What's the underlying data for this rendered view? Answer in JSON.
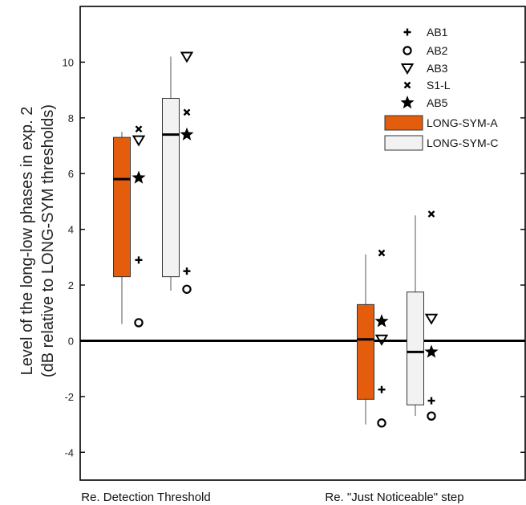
{
  "chart_data": {
    "type": "box",
    "ylabel_lines": [
      "Level of the long-low phases in exp. 2",
      "(dB relative to LONG-SYM thresholds)"
    ],
    "categories": [
      "Re. Detection Threshold",
      "Re. \"Just Noticeable\" step"
    ],
    "ylim": [
      -5,
      12
    ],
    "yticks": [
      -4,
      -2,
      0,
      2,
      4,
      6,
      8,
      10
    ],
    "reference_line": 0,
    "boxes": [
      {
        "series": "LONG-SYM-A",
        "category": 0,
        "whisker_low": 0.6,
        "q1": 2.3,
        "median": 5.8,
        "q3": 7.3,
        "whisker_high": 7.5
      },
      {
        "series": "LONG-SYM-C",
        "category": 0,
        "whisker_low": 1.8,
        "q1": 2.3,
        "median": 7.4,
        "q3": 8.7,
        "whisker_high": 10.2
      },
      {
        "series": "LONG-SYM-A",
        "category": 1,
        "whisker_low": -3.0,
        "q1": -2.1,
        "median": 0.05,
        "q3": 1.3,
        "whisker_high": 3.1
      },
      {
        "series": "LONG-SYM-C",
        "category": 1,
        "whisker_low": -2.7,
        "q1": -2.3,
        "median": -0.4,
        "q3": 1.75,
        "whisker_high": 4.5
      }
    ],
    "subjects": [
      {
        "name": "AB1",
        "marker": "plus",
        "values": [
          2.9,
          2.5,
          -1.75,
          -2.15
        ]
      },
      {
        "name": "AB2",
        "marker": "circle",
        "values": [
          0.65,
          1.85,
          -2.95,
          -2.7
        ]
      },
      {
        "name": "AB3",
        "marker": "triangle-down",
        "values": [
          7.2,
          10.2,
          0.05,
          0.8
        ]
      },
      {
        "name": "S1-L",
        "marker": "x",
        "values": [
          7.6,
          8.2,
          3.15,
          4.55
        ]
      },
      {
        "name": "AB5",
        "marker": "star",
        "values": [
          5.85,
          7.4,
          0.7,
          -0.4
        ]
      }
    ],
    "legend": {
      "placement": "top-right",
      "box_entries": [
        {
          "name": "LONG-SYM-A",
          "color": "#e35d0c"
        },
        {
          "name": "LONG-SYM-C",
          "color": "#f2f2f2"
        }
      ]
    }
  }
}
